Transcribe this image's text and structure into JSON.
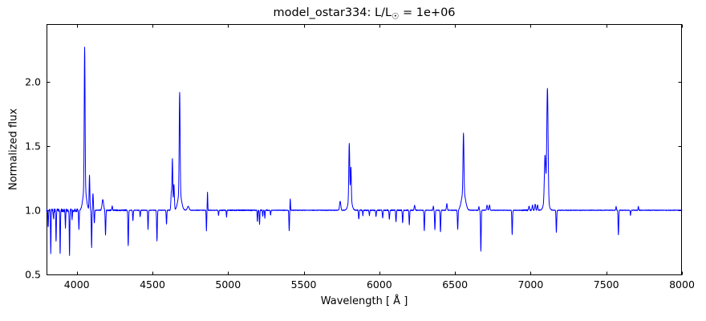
{
  "figure": {
    "title_prefix": "model_ostar334: L/L",
    "title_sun_symbol": "☉",
    "title_suffix": " = 1e+06",
    "xlabel": "Wavelength [ Å ]",
    "ylabel": "Normalized flux"
  },
  "chart_data": {
    "type": "line",
    "title": "model_ostar334: L/L☉ = 1e+06",
    "xlabel": "Wavelength [ Å ]",
    "ylabel": "Normalized flux",
    "xlim": [
      3800,
      8000
    ],
    "ylim": [
      0.5,
      2.45
    ],
    "xticks": [
      4000,
      4500,
      5000,
      5500,
      6000,
      6500,
      7000,
      7500,
      8000
    ],
    "yticks": [
      0.5,
      1.0,
      1.5,
      2.0
    ],
    "grid": false,
    "legend": "none",
    "line_color": "#0000ff",
    "axis_color": "#000000",
    "background_color": "#ffffff",
    "continuum": 1.0,
    "features": [
      {
        "wavelength": 3795,
        "peak_flux": 0.91,
        "sigma": 1.8
      },
      {
        "wavelength": 3811,
        "peak_flux": 0.86,
        "sigma": 1.8
      },
      {
        "wavelength": 3828,
        "peak_flux": 0.67,
        "sigma": 1.8
      },
      {
        "wavelength": 3846,
        "peak_flux": 0.93,
        "sigma": 1.8
      },
      {
        "wavelength": 3863,
        "peak_flux": 0.75,
        "sigma": 1.8
      },
      {
        "wavelength": 3890,
        "peak_flux": 0.66,
        "sigma": 1.8
      },
      {
        "wavelength": 3925,
        "peak_flux": 0.87,
        "sigma": 1.8
      },
      {
        "wavelength": 3952,
        "peak_flux": 0.65,
        "sigma": 1.8
      },
      {
        "wavelength": 3969,
        "peak_flux": 0.92,
        "sigma": 1.8
      },
      {
        "wavelength": 4014,
        "peak_flux": 0.85,
        "sigma": 2.0
      },
      {
        "wavelength": 4052,
        "peak_flux": 2.1,
        "sigma": 2.8
      },
      {
        "wavelength": 4052,
        "peak_flux": 1.17,
        "sigma": 11
      },
      {
        "wavelength": 4084,
        "peak_flux": 1.27,
        "sigma": 2.4
      },
      {
        "wavelength": 4098,
        "peak_flux": 0.71,
        "sigma": 2.0
      },
      {
        "wavelength": 4107,
        "peak_flux": 1.13,
        "sigma": 2.4
      },
      {
        "wavelength": 4116,
        "peak_flux": 0.9,
        "sigma": 2.0
      },
      {
        "wavelength": 4172,
        "peak_flux": 1.08,
        "sigma": 5
      },
      {
        "wavelength": 4190,
        "peak_flux": 0.81,
        "sigma": 2.2
      },
      {
        "wavelength": 4234,
        "peak_flux": 1.03,
        "sigma": 2.5
      },
      {
        "wavelength": 4340,
        "peak_flux": 0.72,
        "sigma": 2.2
      },
      {
        "wavelength": 4371,
        "peak_flux": 0.92,
        "sigma": 2.0
      },
      {
        "wavelength": 4419,
        "peak_flux": 0.95,
        "sigma": 2.0
      },
      {
        "wavelength": 4471,
        "peak_flux": 0.85,
        "sigma": 2.0
      },
      {
        "wavelength": 4530,
        "peak_flux": 0.76,
        "sigma": 2.2
      },
      {
        "wavelength": 4593,
        "peak_flux": 0.89,
        "sigma": 2.0
      },
      {
        "wavelength": 4625,
        "peak_flux": 1.14,
        "sigma": 3
      },
      {
        "wavelength": 4632,
        "peak_flux": 1.39,
        "sigma": 2.5
      },
      {
        "wavelength": 4642,
        "peak_flux": 1.2,
        "sigma": 3
      },
      {
        "wavelength": 4680,
        "peak_flux": 1.79,
        "sigma": 3.0
      },
      {
        "wavelength": 4680,
        "peak_flux": 1.13,
        "sigma": 12
      },
      {
        "wavelength": 4736,
        "peak_flux": 1.03,
        "sigma": 6
      },
      {
        "wavelength": 4857,
        "peak_flux": 0.84,
        "sigma": 1.7
      },
      {
        "wavelength": 4864,
        "peak_flux": 1.14,
        "sigma": 1.6
      },
      {
        "wavelength": 4937,
        "peak_flux": 0.96,
        "sigma": 1.8
      },
      {
        "wavelength": 4990,
        "peak_flux": 0.95,
        "sigma": 1.8
      },
      {
        "wavelength": 5194,
        "peak_flux": 0.91,
        "sigma": 1.8
      },
      {
        "wavelength": 5208,
        "peak_flux": 0.89,
        "sigma": 1.8
      },
      {
        "wavelength": 5229,
        "peak_flux": 0.95,
        "sigma": 1.8
      },
      {
        "wavelength": 5243,
        "peak_flux": 0.94,
        "sigma": 1.8
      },
      {
        "wavelength": 5281,
        "peak_flux": 0.96,
        "sigma": 1.8
      },
      {
        "wavelength": 5404,
        "peak_flux": 0.84,
        "sigma": 2.0
      },
      {
        "wavelength": 5411,
        "peak_flux": 1.09,
        "sigma": 1.7
      },
      {
        "wavelength": 5741,
        "peak_flux": 1.07,
        "sigma": 4
      },
      {
        "wavelength": 5801,
        "peak_flux": 1.43,
        "sigma": 3.0
      },
      {
        "wavelength": 5812,
        "peak_flux": 1.25,
        "sigma": 2.6
      },
      {
        "wavelength": 5806,
        "peak_flux": 1.1,
        "sigma": 11
      },
      {
        "wavelength": 5864,
        "peak_flux": 0.93,
        "sigma": 2.2
      },
      {
        "wavelength": 5891,
        "peak_flux": 0.96,
        "sigma": 1.8
      },
      {
        "wavelength": 5934,
        "peak_flux": 0.96,
        "sigma": 2.2
      },
      {
        "wavelength": 5978,
        "peak_flux": 0.95,
        "sigma": 2.2
      },
      {
        "wavelength": 6022,
        "peak_flux": 0.94,
        "sigma": 2.2
      },
      {
        "wavelength": 6066,
        "peak_flux": 0.93,
        "sigma": 2.2
      },
      {
        "wavelength": 6110,
        "peak_flux": 0.91,
        "sigma": 2.2
      },
      {
        "wavelength": 6154,
        "peak_flux": 0.9,
        "sigma": 2.2
      },
      {
        "wavelength": 6198,
        "peak_flux": 0.89,
        "sigma": 2.2
      },
      {
        "wavelength": 6233,
        "peak_flux": 1.04,
        "sigma": 3
      },
      {
        "wavelength": 6297,
        "peak_flux": 0.84,
        "sigma": 2.2
      },
      {
        "wavelength": 6357,
        "peak_flux": 1.03,
        "sigma": 2
      },
      {
        "wavelength": 6367,
        "peak_flux": 0.85,
        "sigma": 2.2
      },
      {
        "wavelength": 6404,
        "peak_flux": 0.83,
        "sigma": 2.2
      },
      {
        "wavelength": 6446,
        "peak_flux": 1.05,
        "sigma": 3
      },
      {
        "wavelength": 6518,
        "peak_flux": 0.85,
        "sigma": 2.2
      },
      {
        "wavelength": 6556,
        "peak_flux": 1.46,
        "sigma": 3.0
      },
      {
        "wavelength": 6556,
        "peak_flux": 1.14,
        "sigma": 13
      },
      {
        "wavelength": 6658,
        "peak_flux": 1.03,
        "sigma": 2
      },
      {
        "wavelength": 6671,
        "peak_flux": 0.68,
        "sigma": 2.2
      },
      {
        "wavelength": 6712,
        "peak_flux": 1.04,
        "sigma": 3
      },
      {
        "wavelength": 6728,
        "peak_flux": 1.04,
        "sigma": 3
      },
      {
        "wavelength": 6878,
        "peak_flux": 0.81,
        "sigma": 2.2
      },
      {
        "wavelength": 6990,
        "peak_flux": 1.03,
        "sigma": 3
      },
      {
        "wavelength": 7012,
        "peak_flux": 1.04,
        "sigma": 3
      },
      {
        "wavelength": 7030,
        "peak_flux": 1.05,
        "sigma": 3
      },
      {
        "wavelength": 7046,
        "peak_flux": 1.04,
        "sigma": 3
      },
      {
        "wavelength": 7095,
        "peak_flux": 1.33,
        "sigma": 4.2
      },
      {
        "wavelength": 7111,
        "peak_flux": 1.85,
        "sigma": 4.2
      },
      {
        "wavelength": 7103,
        "peak_flux": 1.12,
        "sigma": 13
      },
      {
        "wavelength": 7170,
        "peak_flux": 0.83,
        "sigma": 2.2
      },
      {
        "wavelength": 7565,
        "peak_flux": 1.03,
        "sigma": 2
      },
      {
        "wavelength": 7580,
        "peak_flux": 0.81,
        "sigma": 2.2
      },
      {
        "wavelength": 7660,
        "peak_flux": 0.96,
        "sigma": 1.8
      },
      {
        "wavelength": 7712,
        "peak_flux": 1.03,
        "sigma": 2
      }
    ],
    "noise": [
      {
        "range": [
          3800,
          4008
        ],
        "amp": 0.012
      },
      {
        "range": [
          4150,
          4345
        ],
        "amp": 0.005
      },
      {
        "range": [
          4950,
          5270
        ],
        "amp": 0.004
      },
      {
        "range": [
          5850,
          6250
        ],
        "amp": 0.004
      },
      {
        "range": [
          6940,
          7060
        ],
        "amp": 0.005
      },
      {
        "range": [
          3800,
          8000
        ],
        "amp": 0.0025
      }
    ]
  }
}
